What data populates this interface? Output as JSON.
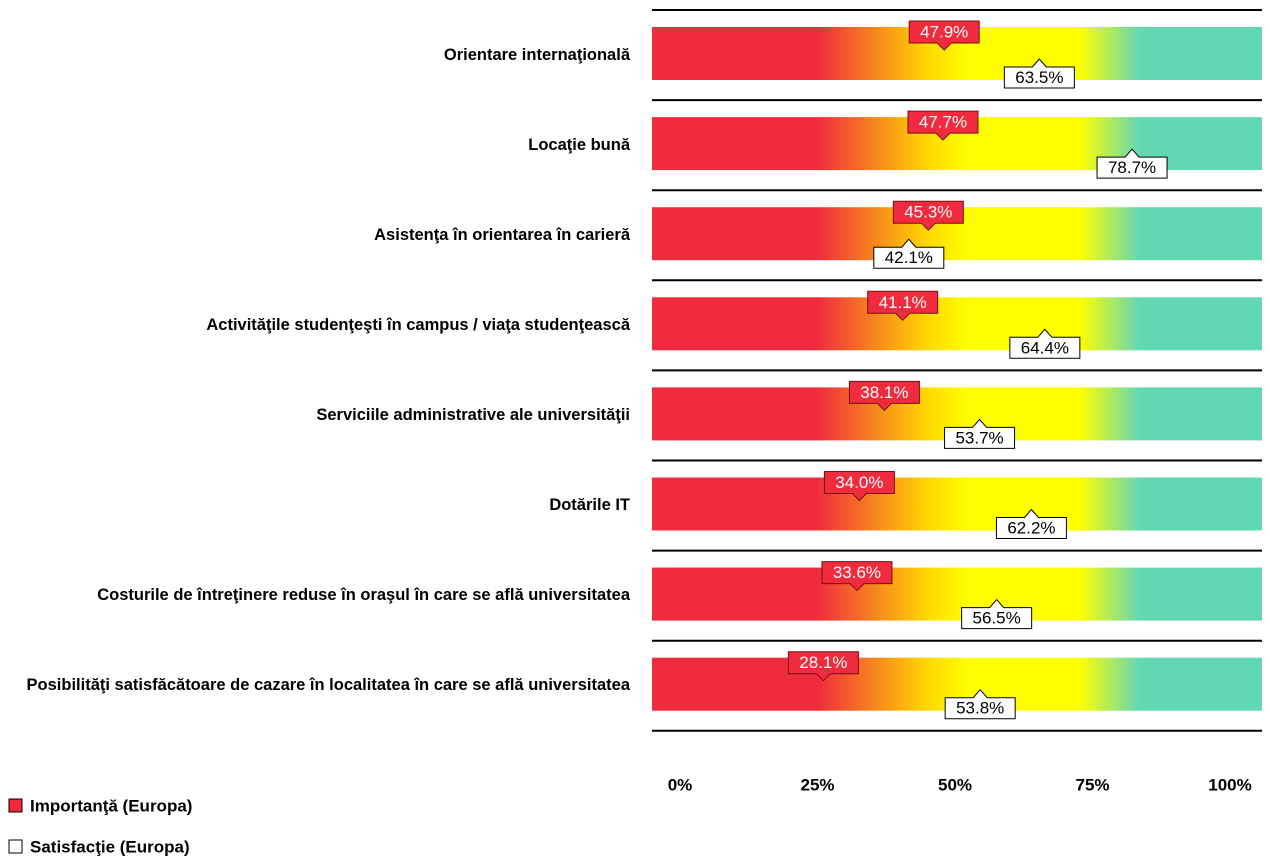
{
  "chart_data": {
    "type": "bar",
    "categories": [
      "Orientare internaţională",
      "Locaţie bună",
      "Asistenţa în orientarea în carieră",
      "Activităţile studenţeşti în campus / viaţa studenţească",
      "Serviciile administrative ale universităţii",
      "Dotările IT",
      "Costurile de întreţinere reduse în oraşul în care se află universitatea",
      "Posibilităţi satisfăcătoare de cazare în localitatea în care se află universitatea"
    ],
    "series": [
      {
        "name": "Importanţă (Europa)",
        "color": "#ef2b3d",
        "values": [
          47.9,
          47.7,
          45.3,
          41.1,
          38.1,
          34.0,
          33.6,
          28.1
        ],
        "value_labels": [
          "47.9%",
          "47.7%",
          "45.3%",
          "41.1%",
          "38.1%",
          "34.0%",
          "33.6%",
          "28.1%"
        ]
      },
      {
        "name": "Satisfacţie (Europa)",
        "color": "#ffffff",
        "values": [
          63.5,
          78.7,
          42.1,
          64.4,
          53.7,
          62.2,
          56.5,
          53.8
        ],
        "value_labels": [
          "63.5%",
          "78.7%",
          "42.1%",
          "64.4%",
          "53.7%",
          "62.2%",
          "56.5%",
          "53.8%"
        ]
      }
    ],
    "xlim": [
      0,
      100
    ],
    "xticks": [
      {
        "value": 0,
        "label": "0%"
      },
      {
        "value": 25,
        "label": "25%"
      },
      {
        "value": 50,
        "label": "50%"
      },
      {
        "value": 75,
        "label": "75%"
      },
      {
        "value": 100,
        "label": "100%"
      }
    ]
  }
}
